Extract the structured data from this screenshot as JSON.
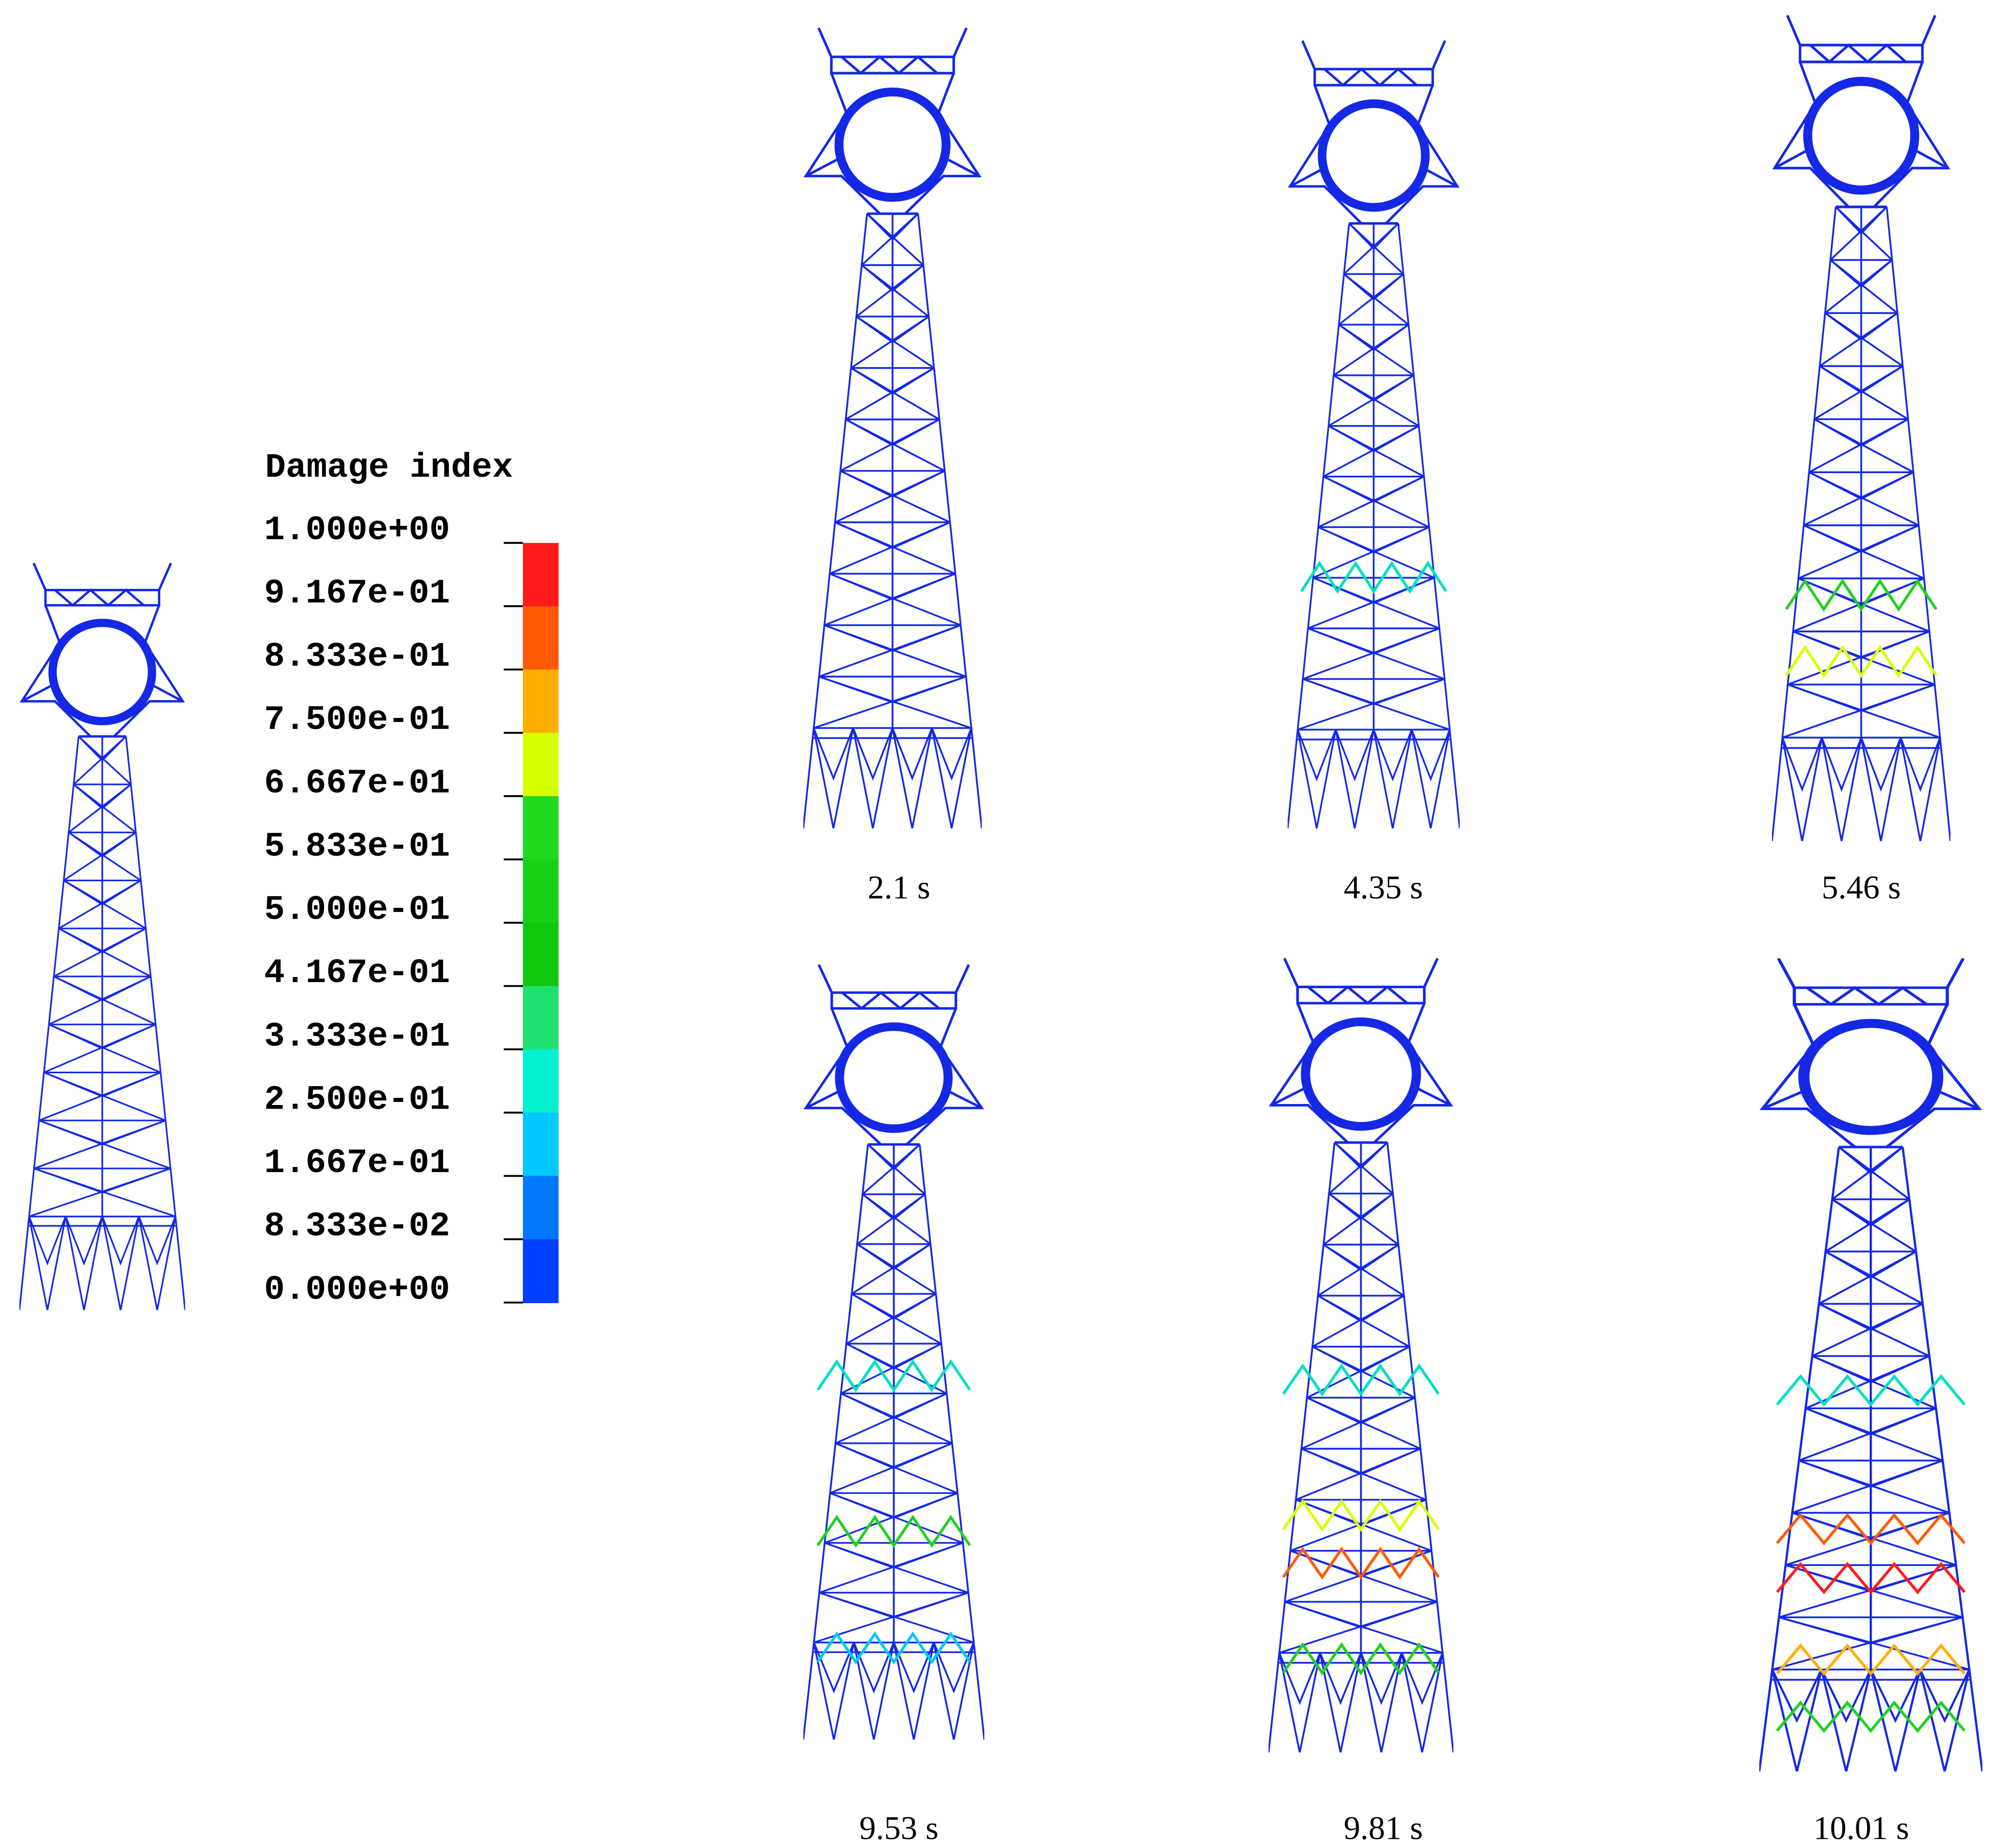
{
  "legend": {
    "title": "Damage index",
    "labels": [
      "1.000e+00",
      "9.167e-01",
      "8.333e-01",
      "7.500e-01",
      "6.667e-01",
      "5.833e-01",
      "5.000e-01",
      "4.167e-01",
      "3.333e-01",
      "2.500e-01",
      "1.667e-01",
      "8.333e-02",
      "0.000e+00"
    ],
    "colors": [
      "#ff1a1a",
      "#ff5a00",
      "#ffae00",
      "#d8ff00",
      "#20d820",
      "#18d018",
      "#10c810",
      "#20e070",
      "#00f0d0",
      "#00c8ff",
      "#0078ff",
      "#0040ff",
      "#0010ff"
    ]
  },
  "panels": [
    {
      "caption": "2.1 s"
    },
    {
      "caption": "4.35 s"
    },
    {
      "caption": "5.46 s"
    },
    {
      "caption": "9.53 s"
    },
    {
      "caption": "9.81 s"
    },
    {
      "caption": "10.01 s"
    }
  ]
}
